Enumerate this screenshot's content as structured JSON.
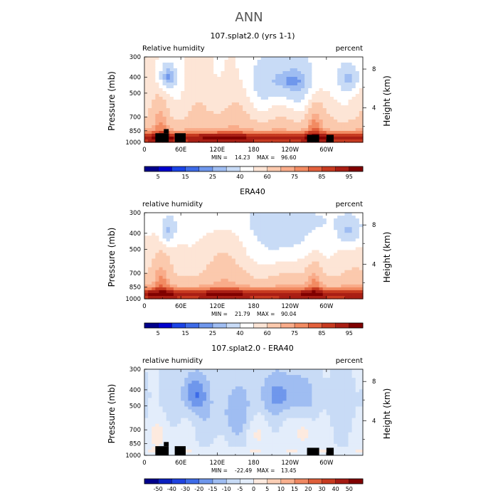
{
  "figure": {
    "title": "ANN"
  },
  "chart_data": [
    {
      "type": "heatmap",
      "title": "107.splat2.0 (yrs 1-1)",
      "left_label": "Relative humidity",
      "right_label": "percent",
      "ylabel": "Pressure (mb)",
      "ylabel_right": "Height (km)",
      "x_ticks": [
        "0",
        "60E",
        "120E",
        "180",
        "120W",
        "60W"
      ],
      "y_ticks": [
        "300",
        "400",
        "500",
        "700",
        "850",
        "1000"
      ],
      "y_ticks_right": [
        "8",
        "4"
      ],
      "min_label": "MIN =",
      "min": "14.23",
      "max_label": "MAX =",
      "max": "96.60",
      "colorbar": [
        "5",
        "15",
        "25",
        "40",
        "60",
        "75",
        "85",
        "95"
      ],
      "ylim": [
        1000,
        300
      ],
      "features": [
        {
          "x": 38,
          "p": 400,
          "value": 20
        },
        {
          "x": 232,
          "p": 420,
          "value": 14
        },
        {
          "x": 338,
          "p": 400,
          "value": 20
        },
        {
          "x": 225,
          "p": 380,
          "value": 30
        }
      ]
    },
    {
      "type": "heatmap",
      "title": "ERA40",
      "left_label": "relative humidity",
      "right_label": "percent",
      "ylabel": "Pressure (mb)",
      "ylabel_right": "Height (km)",
      "x_ticks": [
        "0",
        "60E",
        "120E",
        "180",
        "120W",
        "60W"
      ],
      "y_ticks": [
        "300",
        "400",
        "500",
        "700",
        "850",
        "1000"
      ],
      "y_ticks_right": [
        "8",
        "4"
      ],
      "min_label": "MIN =",
      "min": "21.79",
      "max_label": "MAX =",
      "max": "90.04",
      "colorbar": [
        "5",
        "15",
        "25",
        "40",
        "60",
        "75",
        "85",
        "95"
      ],
      "ylim": [
        1000,
        300
      ],
      "features": [
        {
          "x": 38,
          "p": 400,
          "value": 22
        },
        {
          "x": 232,
          "p": 430,
          "value": 22
        },
        {
          "x": 225,
          "p": 380,
          "value": 35
        },
        {
          "x": 338,
          "p": 400,
          "value": 35
        }
      ]
    },
    {
      "type": "heatmap",
      "title": "107.splat2.0 - ERA40",
      "left_label": "relative humidity",
      "right_label": "percent",
      "ylabel": "Pressure (mb)",
      "ylabel_right": "Height (km)",
      "x_ticks": [
        "0",
        "60E",
        "120E",
        "180",
        "120W",
        "60W"
      ],
      "y_ticks": [
        "300",
        "400",
        "500",
        "700",
        "850",
        "1000"
      ],
      "y_ticks_right": [
        "8",
        "4"
      ],
      "min_label": "MIN =",
      "min": "-22.49",
      "max_label": "MAX =",
      "max": "13.45",
      "colorbar": [
        "-50",
        "-40",
        "-30",
        "-20",
        "-15",
        "-10",
        "-5",
        "0",
        "5",
        "10",
        "15",
        "20",
        "30",
        "40",
        "50"
      ],
      "ylim": [
        1000,
        300
      ],
      "features": [
        {
          "x": 82,
          "p": 420,
          "value": -22
        },
        {
          "x": 180,
          "p": 450,
          "value": -8
        },
        {
          "x": 250,
          "p": 450,
          "value": -10
        },
        {
          "x": 265,
          "p": 720,
          "value": 8
        }
      ]
    }
  ],
  "colors": {
    "rh_scale": [
      "#00008b",
      "#0000cd",
      "#1a43e6",
      "#3d6be8",
      "#6f97ec",
      "#9fbdf2",
      "#c8dbf6",
      "#ffffff",
      "#fde5d6",
      "#fbc9ad",
      "#f9ac8a",
      "#f28b62",
      "#e2603c",
      "#c73a20",
      "#a91e14",
      "#800000"
    ],
    "diff_scale": [
      "#00008b",
      "#0b1fbf",
      "#1f43e0",
      "#3d6be8",
      "#6f97ec",
      "#9fbdf2",
      "#c8dbf6",
      "#e3edfb",
      "#fdeadf",
      "#fbcfb6",
      "#f9b08f",
      "#f08862",
      "#df5f3b",
      "#c73a20",
      "#a51a12",
      "#800000"
    ],
    "topography": "#000000"
  }
}
